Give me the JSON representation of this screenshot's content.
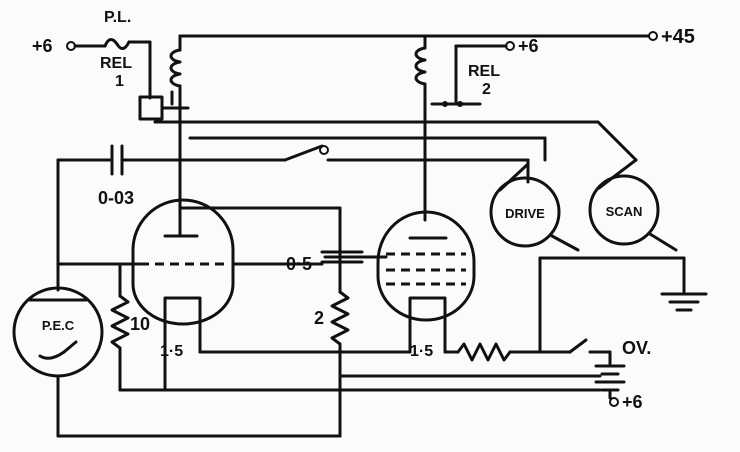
{
  "labels": {
    "plus6_left": "+6",
    "pl": "P.L.",
    "rel1_a": "REL",
    "rel1_b": "1",
    "plus45": "+45",
    "plus6_right": "+6",
    "rel2_a": "REL",
    "rel2_b": "2",
    "cap_003": "0-03",
    "drive": "DRIVE",
    "scan": "SCAN",
    "cap_05": "0·5",
    "pec": "P.E.C",
    "r10": "10",
    "r2": "2",
    "fil_left": "1·5",
    "fil_right": "1·5",
    "ov": "OV.",
    "plus6_bottom": "+6"
  }
}
